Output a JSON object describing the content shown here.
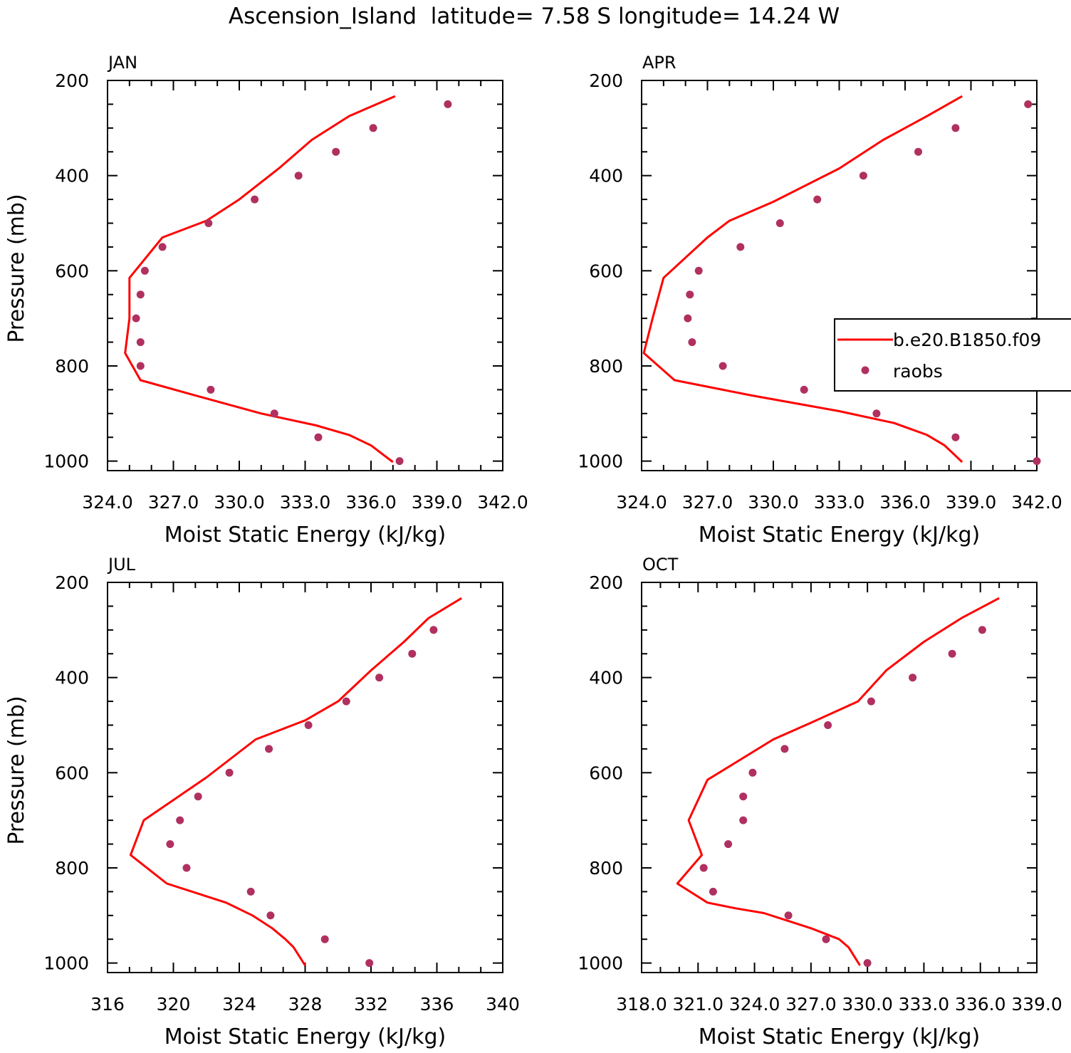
{
  "title": "Ascension_Island  latitude= 7.58 S longitude= 14.24 W",
  "colors": {
    "model": "#ff0000",
    "obs": "#b03060",
    "axes": "#000000"
  },
  "legend": {
    "placement": "right-middle",
    "model_label": "b.e20.B1850.f09",
    "obs_label": "raobs"
  },
  "chart_data": [
    {
      "type": "line",
      "panel_label": "JAN",
      "xlabel": "Moist Static Energy (kJ/kg)",
      "ylabel": "Pressure (mb)",
      "xlim": [
        324,
        342
      ],
      "ylim": [
        1000,
        200
      ],
      "xticks": [
        "324.0",
        "327.0",
        "330.0",
        "333.0",
        "336.0",
        "339.0",
        "342.0"
      ],
      "yticks": [
        "200",
        "400",
        "600",
        "800",
        "1000"
      ],
      "series": [
        {
          "name": "b.e20.B1850.f09",
          "style": "line",
          "points": [
            [
              337.1,
              233
            ],
            [
              335.0,
              275
            ],
            [
              333.3,
              325
            ],
            [
              331.8,
              385
            ],
            [
              330.0,
              450
            ],
            [
              328.5,
              495
            ],
            [
              326.5,
              530
            ],
            [
              325.0,
              615
            ],
            [
              325.0,
              700
            ],
            [
              324.8,
              773
            ],
            [
              325.5,
              830
            ],
            [
              328.0,
              862
            ],
            [
              331.0,
              900
            ],
            [
              333.5,
              925
            ],
            [
              335.0,
              945
            ],
            [
              336.0,
              967
            ],
            [
              337.0,
              1002
            ]
          ]
        },
        {
          "name": "raobs",
          "style": "markers",
          "points": [
            [
              339.5,
              250
            ],
            [
              336.1,
              300
            ],
            [
              334.4,
              350
            ],
            [
              332.7,
              400
            ],
            [
              330.7,
              450
            ],
            [
              328.6,
              500
            ],
            [
              326.5,
              550
            ],
            [
              325.7,
              600
            ],
            [
              325.5,
              650
            ],
            [
              325.3,
              700
            ],
            [
              325.5,
              750
            ],
            [
              325.5,
              800
            ],
            [
              328.7,
              850
            ],
            [
              331.6,
              900
            ],
            [
              333.6,
              950
            ],
            [
              337.3,
              1000
            ]
          ]
        }
      ]
    },
    {
      "type": "line",
      "panel_label": "APR",
      "xlabel": "Moist Static Energy (kJ/kg)",
      "ylabel": "",
      "xlim": [
        324,
        342
      ],
      "ylim": [
        1000,
        200
      ],
      "xticks": [
        "324.0",
        "327.0",
        "330.0",
        "333.0",
        "336.0",
        "339.0",
        "342.0"
      ],
      "yticks": [
        "200",
        "400",
        "600",
        "800",
        "1000"
      ],
      "series": [
        {
          "name": "b.e20.B1850.f09",
          "style": "line",
          "points": [
            [
              338.6,
              233
            ],
            [
              337.0,
              275
            ],
            [
              335.0,
              325
            ],
            [
              333.0,
              385
            ],
            [
              330.0,
              455
            ],
            [
              328.0,
              495
            ],
            [
              327.0,
              530
            ],
            [
              325.0,
              615
            ],
            [
              324.5,
              700
            ],
            [
              324.1,
              773
            ],
            [
              325.5,
              830
            ],
            [
              329.0,
              862
            ],
            [
              333.0,
              895
            ],
            [
              335.5,
              920
            ],
            [
              337.0,
              945
            ],
            [
              337.8,
              967
            ],
            [
              338.6,
              1002
            ]
          ]
        },
        {
          "name": "raobs",
          "style": "markers",
          "points": [
            [
              341.6,
              250
            ],
            [
              338.3,
              300
            ],
            [
              336.6,
              350
            ],
            [
              334.1,
              400
            ],
            [
              332.0,
              450
            ],
            [
              330.3,
              500
            ],
            [
              328.5,
              550
            ],
            [
              326.6,
              600
            ],
            [
              326.2,
              650
            ],
            [
              326.1,
              700
            ],
            [
              326.3,
              750
            ],
            [
              327.7,
              800
            ],
            [
              331.4,
              850
            ],
            [
              334.7,
              900
            ],
            [
              338.3,
              950
            ],
            [
              342.0,
              1000
            ]
          ]
        }
      ]
    },
    {
      "type": "line",
      "panel_label": "JUL",
      "xlabel": "Moist Static Energy (kJ/kg)",
      "ylabel": "Pressure (mb)",
      "xlim": [
        316,
        340
      ],
      "ylim": [
        1000,
        200
      ],
      "xticks": [
        "316",
        "320",
        "324",
        "328",
        "332",
        "336",
        "340"
      ],
      "yticks": [
        "200",
        "400",
        "600",
        "800",
        "1000"
      ],
      "series": [
        {
          "name": "b.e20.B1850.f09",
          "style": "line",
          "points": [
            [
              337.5,
              233
            ],
            [
              335.5,
              275
            ],
            [
              334.0,
              325
            ],
            [
              332.0,
              385
            ],
            [
              330.0,
              450
            ],
            [
              328.0,
              490
            ],
            [
              325.0,
              530
            ],
            [
              322.0,
              610
            ],
            [
              318.2,
              700
            ],
            [
              317.4,
              773
            ],
            [
              319.6,
              833
            ],
            [
              323.2,
              873
            ],
            [
              324.8,
              900
            ],
            [
              326.0,
              927
            ],
            [
              326.8,
              950
            ],
            [
              327.3,
              967
            ],
            [
              328.0,
              1005
            ]
          ]
        },
        {
          "name": "raobs",
          "style": "markers",
          "points": [
            [
              335.8,
              300
            ],
            [
              334.5,
              350
            ],
            [
              332.5,
              400
            ],
            [
              330.5,
              450
            ],
            [
              328.2,
              500
            ],
            [
              325.8,
              550
            ],
            [
              323.4,
              600
            ],
            [
              321.5,
              650
            ],
            [
              320.4,
              700
            ],
            [
              319.8,
              750
            ],
            [
              320.8,
              800
            ],
            [
              324.7,
              850
            ],
            [
              325.9,
              900
            ],
            [
              329.2,
              950
            ],
            [
              331.9,
              1000
            ]
          ]
        }
      ]
    },
    {
      "type": "line",
      "panel_label": "OCT",
      "xlabel": "Moist Static Energy (kJ/kg)",
      "ylabel": "",
      "xlim": [
        318.0,
        339.0
      ],
      "ylim": [
        1000,
        200
      ],
      "xticks": [
        "318.0",
        "321.0",
        "324.0",
        "327.0",
        "330.0",
        "333.0",
        "336.0",
        "339.0"
      ],
      "yticks": [
        "200",
        "400",
        "600",
        "800",
        "1000"
      ],
      "series": [
        {
          "name": "b.e20.B1850.f09",
          "style": "line",
          "points": [
            [
              337.0,
              233
            ],
            [
              335.0,
              275
            ],
            [
              333.0,
              325
            ],
            [
              331.0,
              385
            ],
            [
              329.5,
              450
            ],
            [
              327.0,
              495
            ],
            [
              325.0,
              530
            ],
            [
              321.5,
              615
            ],
            [
              320.5,
              700
            ],
            [
              321.2,
              773
            ],
            [
              319.9,
              833
            ],
            [
              321.5,
              873
            ],
            [
              323.0,
              885
            ],
            [
              324.5,
              895
            ],
            [
              327.0,
              927
            ],
            [
              328.5,
              950
            ],
            [
              329.0,
              967
            ],
            [
              329.6,
              1005
            ]
          ]
        },
        {
          "name": "raobs",
          "style": "markers",
          "points": [
            [
              336.1,
              300
            ],
            [
              334.5,
              350
            ],
            [
              332.4,
              400
            ],
            [
              330.2,
              450
            ],
            [
              327.9,
              500
            ],
            [
              325.6,
              550
            ],
            [
              323.9,
              600
            ],
            [
              323.4,
              650
            ],
            [
              323.4,
              700
            ],
            [
              322.6,
              750
            ],
            [
              321.3,
              800
            ],
            [
              321.8,
              850
            ],
            [
              325.8,
              900
            ],
            [
              327.8,
              950
            ],
            [
              330.0,
              1000
            ]
          ]
        }
      ]
    }
  ]
}
